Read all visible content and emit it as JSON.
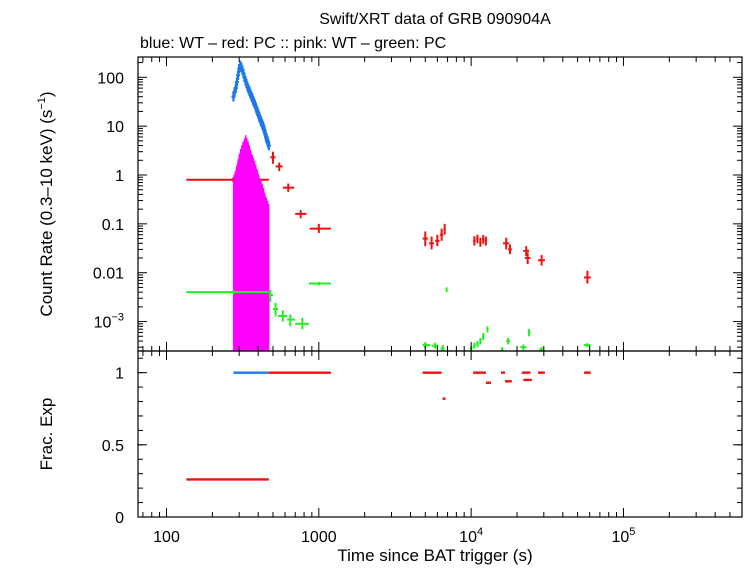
{
  "chart_data": {
    "type": "scatter",
    "title": "Swift/XRT data of GRB 090904A",
    "subtitle": "blue: WT  – red: PC  :: pink: WT  – green: PC",
    "xlabel": "Time since BAT trigger (s)",
    "xscale": "log",
    "xlim": [
      65,
      600000
    ],
    "x_ticks": [
      {
        "value": 100,
        "label": "100"
      },
      {
        "value": 1000,
        "label": "1000"
      },
      {
        "value": 10000,
        "label": "10",
        "exp": "4"
      },
      {
        "value": 100000,
        "label": "10",
        "exp": "5"
      }
    ],
    "colors": {
      "blue": "#1e78e6",
      "red": "#ee1111",
      "pink": "#ff00ff",
      "green": "#22ee22"
    },
    "panels": [
      {
        "name": "count-rate",
        "ylabel": "Count Rate (0.3–10 keV) (s",
        "ylabel_exp": "−1",
        "ylabel_end": ")",
        "yscale": "log",
        "ylim": [
          0.00025,
          260
        ],
        "y_ticks": [
          {
            "value": 100,
            "label": "100"
          },
          {
            "value": 10,
            "label": "10"
          },
          {
            "value": 1,
            "label": "1"
          },
          {
            "value": 0.1,
            "label": "0.1"
          },
          {
            "value": 0.01,
            "label": "0.01"
          },
          {
            "value": 0.001,
            "label": "10",
            "exp": "−3"
          }
        ],
        "series": [
          {
            "name": "blue: WT",
            "color": "blue",
            "points": [
              [
                275,
                40
              ],
              [
                280,
                50
              ],
              [
                285,
                60
              ],
              [
                290,
                80
              ],
              [
                295,
                110
              ],
              [
                300,
                150
              ],
              [
                305,
                175
              ],
              [
                310,
                160
              ],
              [
                315,
                140
              ],
              [
                320,
                120
              ],
              [
                325,
                100
              ],
              [
                330,
                85
              ],
              [
                335,
                75
              ],
              [
                340,
                65
              ],
              [
                345,
                58
              ],
              [
                350,
                52
              ],
              [
                355,
                47
              ],
              [
                360,
                42
              ],
              [
                365,
                38
              ],
              [
                370,
                34
              ],
              [
                375,
                31
              ],
              [
                380,
                28
              ],
              [
                385,
                25
              ],
              [
                390,
                22
              ],
              [
                395,
                20
              ],
              [
                400,
                18
              ],
              [
                405,
                16
              ],
              [
                410,
                14.5
              ],
              [
                415,
                13
              ],
              [
                420,
                12
              ],
              [
                425,
                11
              ],
              [
                430,
                10
              ],
              [
                435,
                9
              ],
              [
                440,
                8
              ],
              [
                445,
                7
              ],
              [
                450,
                6
              ],
              [
                455,
                5.5
              ],
              [
                460,
                5
              ],
              [
                465,
                4.5
              ],
              [
                470,
                4
              ]
            ]
          },
          {
            "name": "red: PC",
            "color": "red",
            "points": [
              {
                "x": 275,
                "y": 0.8,
                "xlo": 135,
                "xhi": 470,
                "ylo": 0.7,
                "yhi": 0.9
              },
              {
                "x": 500,
                "y": 2.3,
                "xlo": 480,
                "xhi": 520,
                "ylo": 1.7,
                "yhi": 3.0
              },
              {
                "x": 550,
                "y": 1.5,
                "xlo": 520,
                "xhi": 580,
                "ylo": 1.2,
                "yhi": 1.8
              },
              {
                "x": 630,
                "y": 0.55,
                "xlo": 580,
                "xhi": 690,
                "ylo": 0.45,
                "yhi": 0.67
              },
              {
                "x": 760,
                "y": 0.16,
                "xlo": 700,
                "xhi": 830,
                "ylo": 0.13,
                "yhi": 0.19
              },
              {
                "x": 1000,
                "y": 0.08,
                "xlo": 870,
                "xhi": 1200,
                "ylo": 0.065,
                "yhi": 0.1
              },
              {
                "x": 5000,
                "y": 0.05,
                "xlo": 4800,
                "xhi": 5200,
                "ylo": 0.035,
                "yhi": 0.07
              },
              {
                "x": 5500,
                "y": 0.04,
                "xlo": 5300,
                "xhi": 5700,
                "ylo": 0.03,
                "yhi": 0.055
              },
              {
                "x": 6000,
                "y": 0.045,
                "xlo": 5800,
                "xhi": 6200,
                "ylo": 0.035,
                "yhi": 0.06
              },
              {
                "x": 6400,
                "y": 0.06,
                "xlo": 6250,
                "xhi": 6550,
                "ylo": 0.045,
                "yhi": 0.08
              },
              {
                "x": 6700,
                "y": 0.08,
                "xlo": 6600,
                "xhi": 6800,
                "ylo": 0.06,
                "yhi": 0.1
              },
              {
                "x": 10500,
                "y": 0.045,
                "xlo": 10300,
                "xhi": 10700,
                "ylo": 0.036,
                "yhi": 0.056
              },
              {
                "x": 11000,
                "y": 0.05,
                "xlo": 10800,
                "xhi": 11200,
                "ylo": 0.04,
                "yhi": 0.06
              },
              {
                "x": 11500,
                "y": 0.042,
                "xlo": 11300,
                "xhi": 11700,
                "ylo": 0.034,
                "yhi": 0.052
              },
              {
                "x": 12000,
                "y": 0.048,
                "xlo": 11800,
                "xhi": 12200,
                "ylo": 0.039,
                "yhi": 0.059
              },
              {
                "x": 12500,
                "y": 0.045,
                "xlo": 12300,
                "xhi": 12700,
                "ylo": 0.036,
                "yhi": 0.055
              },
              {
                "x": 17000,
                "y": 0.04,
                "xlo": 16200,
                "xhi": 17800,
                "ylo": 0.03,
                "yhi": 0.052
              },
              {
                "x": 18000,
                "y": 0.03,
                "xlo": 17500,
                "xhi": 18500,
                "ylo": 0.024,
                "yhi": 0.038
              },
              {
                "x": 23000,
                "y": 0.028,
                "xlo": 22000,
                "xhi": 24000,
                "ylo": 0.022,
                "yhi": 0.035
              },
              {
                "x": 23500,
                "y": 0.02,
                "xlo": 22500,
                "xhi": 24500,
                "ylo": 0.015,
                "yhi": 0.026
              },
              {
                "x": 29000,
                "y": 0.018,
                "xlo": 27500,
                "xhi": 30500,
                "ylo": 0.014,
                "yhi": 0.023
              },
              {
                "x": 58000,
                "y": 0.008,
                "xlo": 55000,
                "xhi": 61000,
                "ylo": 0.006,
                "yhi": 0.011
              }
            ]
          },
          {
            "name": "pink: WT",
            "color": "pink",
            "band": {
              "xstart": 275,
              "xend": 470,
              "ytop_peak": 5.5,
              "ybottom": 0.00025
            }
          },
          {
            "name": "green: PC",
            "color": "green",
            "points": [
              {
                "x": 275,
                "y": 0.004,
                "xlo": 135,
                "xhi": 470,
                "ylo": 0.0036,
                "yhi": 0.0044
              },
              {
                "x": 480,
                "y": 0.0035,
                "xlo": 470,
                "xhi": 500,
                "ylo": 0.0025,
                "yhi": 0.0045
              },
              {
                "x": 520,
                "y": 0.0018,
                "xlo": 500,
                "xhi": 540,
                "ylo": 0.0013,
                "yhi": 0.0024
              },
              {
                "x": 580,
                "y": 0.0013,
                "xlo": 540,
                "xhi": 620,
                "ylo": 0.001,
                "yhi": 0.0017
              },
              {
                "x": 650,
                "y": 0.0011,
                "xlo": 620,
                "xhi": 700,
                "ylo": 0.0008,
                "yhi": 0.0014
              },
              {
                "x": 780,
                "y": 0.0009,
                "xlo": 700,
                "xhi": 860,
                "ylo": 0.0007,
                "yhi": 0.0012
              },
              {
                "x": 1000,
                "y": 0.006,
                "xlo": 860,
                "xhi": 1200,
                "ylo": 0.0055,
                "yhi": 0.0065
              },
              {
                "x": 6900,
                "y": 0.0045,
                "xlo": 6850,
                "xhi": 6950,
                "ylo": 0.004,
                "yhi": 0.005
              },
              {
                "x": 5000,
                "y": 0.00033,
                "xlo": 4800,
                "xhi": 5400,
                "ylo": 0.00028,
                "yhi": 0.00038
              },
              {
                "x": 5800,
                "y": 0.00032,
                "xlo": 5500,
                "xhi": 6100,
                "ylo": 0.00028,
                "yhi": 0.00037
              },
              {
                "x": 6500,
                "y": 0.00028,
                "xlo": 6300,
                "xhi": 6700,
                "ylo": 0.00025,
                "yhi": 0.00033
              },
              {
                "x": 10000,
                "y": 0.00028,
                "xlo": 9800,
                "xhi": 10200,
                "ylo": 0.00025,
                "yhi": 0.00032
              },
              {
                "x": 10500,
                "y": 0.00032,
                "xlo": 10300,
                "xhi": 10700,
                "ylo": 0.00028,
                "yhi": 0.00037
              },
              {
                "x": 11000,
                "y": 0.00035,
                "xlo": 10800,
                "xhi": 11200,
                "ylo": 0.0003,
                "yhi": 0.0004
              },
              {
                "x": 11500,
                "y": 0.0004,
                "xlo": 11300,
                "xhi": 11700,
                "ylo": 0.00034,
                "yhi": 0.00046
              },
              {
                "x": 12000,
                "y": 0.0005,
                "xlo": 11800,
                "xhi": 12200,
                "ylo": 0.00042,
                "yhi": 0.00058
              },
              {
                "x": 12800,
                "y": 0.0007,
                "xlo": 12600,
                "xhi": 13000,
                "ylo": 0.0006,
                "yhi": 0.0008
              },
              {
                "x": 16000,
                "y": 0.00027,
                "xlo": 15700,
                "xhi": 16300,
                "ylo": 0.00025,
                "yhi": 0.0003
              },
              {
                "x": 17500,
                "y": 0.0004,
                "xlo": 17000,
                "xhi": 18000,
                "ylo": 0.00034,
                "yhi": 0.00046
              },
              {
                "x": 22000,
                "y": 0.0003,
                "xlo": 21000,
                "xhi": 23000,
                "ylo": 0.00026,
                "yhi": 0.00034
              },
              {
                "x": 24000,
                "y": 0.0006,
                "xlo": 23500,
                "xhi": 24500,
                "ylo": 0.0005,
                "yhi": 0.0007
              },
              {
                "x": 29000,
                "y": 0.00027,
                "xlo": 28000,
                "xhi": 30000,
                "ylo": 0.00025,
                "yhi": 0.0003
              },
              {
                "x": 58000,
                "y": 0.00033,
                "xlo": 55000,
                "xhi": 61000,
                "ylo": 0.0003,
                "yhi": 0.00036
              }
            ]
          }
        ]
      },
      {
        "name": "frac-exp",
        "ylabel": "Frac. Exp",
        "yscale": "linear",
        "ylim": [
          0,
          1.15
        ],
        "y_ticks": [
          {
            "value": 0,
            "label": "0"
          },
          {
            "value": 0.5,
            "label": "0.5"
          },
          {
            "value": 1,
            "label": "1"
          }
        ],
        "series": [
          {
            "name": "blue: WT",
            "color": "blue",
            "segments": [
              [
                275,
                470,
                1.0
              ]
            ]
          },
          {
            "name": "red: PC",
            "color": "red",
            "segments": [
              [
                135,
                470,
                0.26
              ],
              [
                470,
                1200,
                1.0
              ],
              [
                4800,
                6400,
                1.0
              ],
              [
                6500,
                6800,
                0.82
              ],
              [
                10300,
                12500,
                1.0
              ],
              [
                12500,
                13500,
                0.93
              ],
              [
                15700,
                16700,
                1.0
              ],
              [
                16700,
                18500,
                0.94
              ],
              [
                21500,
                24500,
                1.0
              ],
              [
                22000,
                25000,
                0.95
              ],
              [
                27500,
                30500,
                1.0
              ],
              [
                55000,
                61000,
                1.0
              ]
            ]
          }
        ]
      }
    ]
  }
}
